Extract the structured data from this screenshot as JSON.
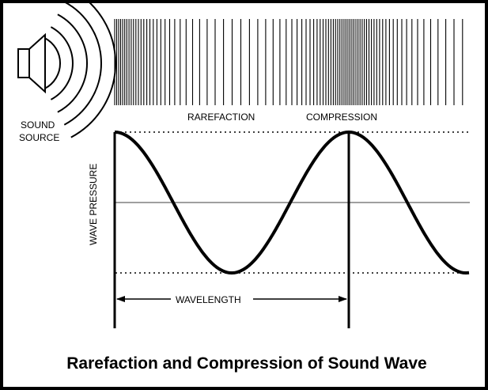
{
  "labels": {
    "sound_source_line1": "SOUND",
    "sound_source_line2": "SOURCE",
    "rarefaction": "RAREFACTION",
    "compression": "COMPRESSION",
    "y_axis": "WAVE PRESSURE",
    "wavelength": "WAVELENGTH"
  },
  "title": "Rarefaction and Compression of Sound Wave",
  "wave": {
    "cycles_shown": 1.5,
    "starts_at": "compression-peak"
  },
  "colors": {
    "stroke": "#000000",
    "baseline": "#666666",
    "background": "#ffffff"
  }
}
